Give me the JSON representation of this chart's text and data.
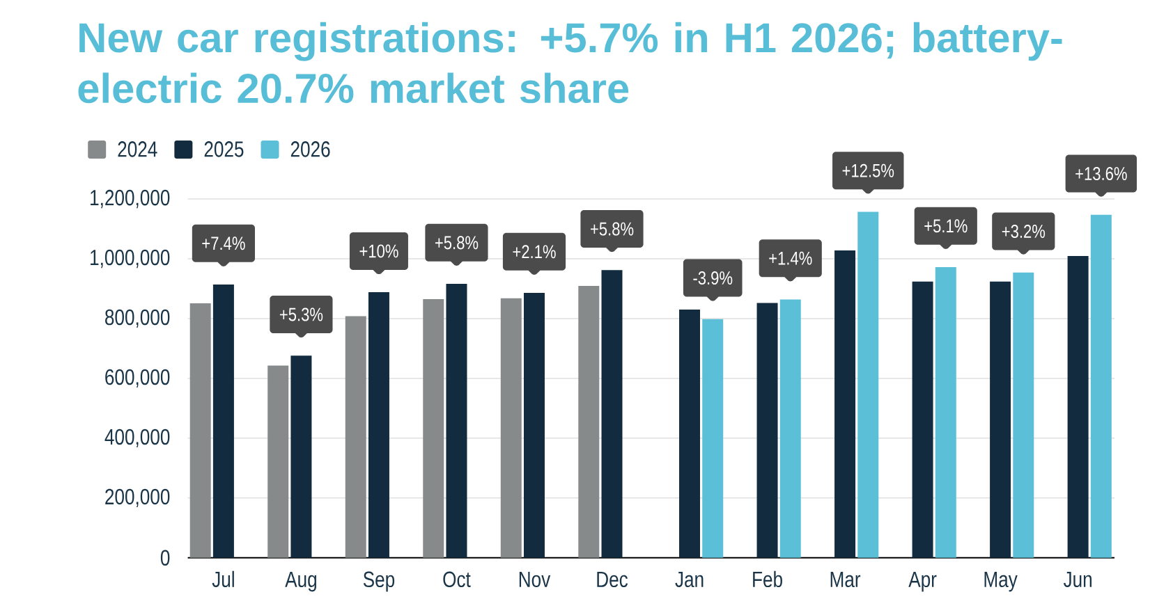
{
  "chart_data": {
    "type": "bar",
    "title": "New car registrations: +5.7% in H1 2026; battery-electric 20.7% market share",
    "categories": [
      "Jul",
      "Aug",
      "Sep",
      "Oct",
      "Nov",
      "Dec",
      "Jan",
      "Feb",
      "Mar",
      "Apr",
      "May",
      "Jun"
    ],
    "series": [
      {
        "name": "2024",
        "color": "#878a8b",
        "values": [
          851000,
          643000,
          808000,
          865000,
          868000,
          909000,
          null,
          null,
          null,
          null,
          null,
          null
        ]
      },
      {
        "name": "2025",
        "color": "#122b3e",
        "values": [
          914000,
          676000,
          888000,
          916000,
          886000,
          962000,
          830000,
          852000,
          1028000,
          924000,
          924000,
          1009000
        ]
      },
      {
        "name": "2026",
        "color": "#5bc0d7",
        "values": [
          null,
          null,
          null,
          null,
          null,
          null,
          798000,
          864000,
          1157000,
          972000,
          954000,
          1147000
        ]
      }
    ],
    "ylim": [
      0,
      1200000
    ],
    "yticks": [
      0,
      {
        "value": 200000,
        "label": "200,000"
      },
      {
        "value": 400000,
        "label": "400,000"
      },
      {
        "value": 600000,
        "label": "600,000"
      },
      {
        "value": 800000,
        "label": "800,000"
      },
      {
        "value": 1000000,
        "label": "1,000,000"
      },
      {
        "value": 1200000,
        "label": "1,200,000"
      }
    ],
    "grid": "y",
    "legend": "top left",
    "annotations": [
      "+7.4%",
      "+5.3%",
      "+10%",
      "+5.8%",
      "+2.1%",
      "+5.8%",
      "-3.9%",
      "+1.4%",
      "+12.5%",
      "+5.1%",
      "+3.2%",
      "+13.6%"
    ]
  }
}
